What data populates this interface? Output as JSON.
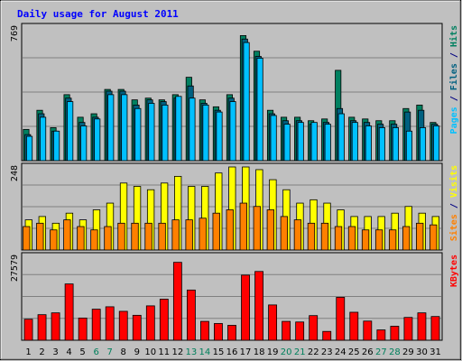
{
  "chart_data": {
    "type": "bar",
    "title": "Daily usage for August 2011",
    "x": [
      "1",
      "2",
      "3",
      "4",
      "5",
      "6",
      "7",
      "8",
      "9",
      "10",
      "11",
      "12",
      "13",
      "14",
      "15",
      "16",
      "17",
      "18",
      "19",
      "20",
      "21",
      "22",
      "23",
      "24",
      "25",
      "26",
      "27",
      "28",
      "29",
      "30",
      "31"
    ],
    "weekend_days": [
      "6",
      "7",
      "13",
      "14",
      "20",
      "21",
      "27",
      "28"
    ],
    "panels": [
      {
        "id": "hits",
        "ymax_label": "769",
        "ymax": 769,
        "right_labels": [
          {
            "text": "Pages",
            "color": "#00c0ff"
          },
          {
            "text": " / ",
            "color": "#000080"
          },
          {
            "text": "Files",
            "color": "#006080"
          },
          {
            "text": " / ",
            "color": "#000080"
          },
          {
            "text": "Hits",
            "color": "#008060"
          }
        ],
        "series": [
          {
            "name": "Hits",
            "color": "#008060",
            "values": [
              180,
              290,
              190,
              380,
              250,
              270,
              410,
              410,
              350,
              360,
              350,
              380,
              480,
              350,
              310,
              380,
              720,
              630,
              290,
              250,
              250,
              230,
              240,
              520,
              250,
              240,
              230,
              230,
              300,
              320,
              220
            ]
          },
          {
            "name": "Files",
            "color": "#006080",
            "values": [
              150,
              270,
              170,
              360,
              220,
              250,
              400,
              400,
              320,
              350,
              340,
              360,
              430,
              330,
              290,
              360,
              700,
              600,
              270,
              230,
              230,
              210,
              220,
              300,
              230,
              220,
              210,
              210,
              280,
              290,
              210
            ]
          },
          {
            "name": "Pages",
            "color": "#00c0ff",
            "values": [
              140,
              250,
              170,
              340,
              200,
              240,
              380,
              380,
              300,
              330,
              320,
              370,
              360,
              320,
              280,
              340,
              680,
              590,
              260,
              210,
              220,
              220,
              210,
              270,
              220,
              200,
              190,
              190,
              170,
              190,
              200
            ]
          }
        ]
      },
      {
        "id": "visits",
        "ymax_label": "248",
        "ymax": 248,
        "right_labels": [
          {
            "text": "Sites",
            "color": "#ff8000"
          },
          {
            "text": " / ",
            "color": "#000080"
          },
          {
            "text": "Visits",
            "color": "#ffff00"
          }
        ],
        "series": [
          {
            "name": "Visits",
            "color": "#ffff00",
            "values": [
              90,
              100,
              80,
              110,
              90,
              120,
              140,
              200,
              190,
              180,
              200,
              220,
              190,
              190,
              230,
              250,
              250,
              240,
              210,
              180,
              140,
              150,
              140,
              120,
              100,
              100,
              100,
              110,
              130,
              110,
              100
            ]
          },
          {
            "name": "Sites",
            "color": "#ff8000",
            "values": [
              70,
              80,
              60,
              90,
              70,
              60,
              70,
              80,
              80,
              80,
              80,
              90,
              90,
              95,
              110,
              120,
              140,
              130,
              120,
              100,
              90,
              80,
              80,
              70,
              70,
              60,
              60,
              60,
              70,
              80,
              75
            ]
          }
        ]
      },
      {
        "id": "kbytes",
        "ymax_label": "27579",
        "ymax": 27579,
        "right_labels": [
          {
            "text": "KBytes",
            "color": "#ff0000"
          }
        ],
        "series": [
          {
            "name": "KBytes",
            "color": "#ff0000",
            "values": [
              6900,
              8400,
              9000,
              18500,
              7300,
              10200,
              11000,
              9500,
              8200,
              11300,
              13500,
              25600,
              16500,
              6200,
              5500,
              4900,
              21400,
              22600,
              11600,
              6200,
              6000,
              8100,
              2900,
              14100,
              9200,
              6300,
              3400,
              4600,
              7500,
              9000,
              7800
            ]
          }
        ]
      }
    ]
  }
}
